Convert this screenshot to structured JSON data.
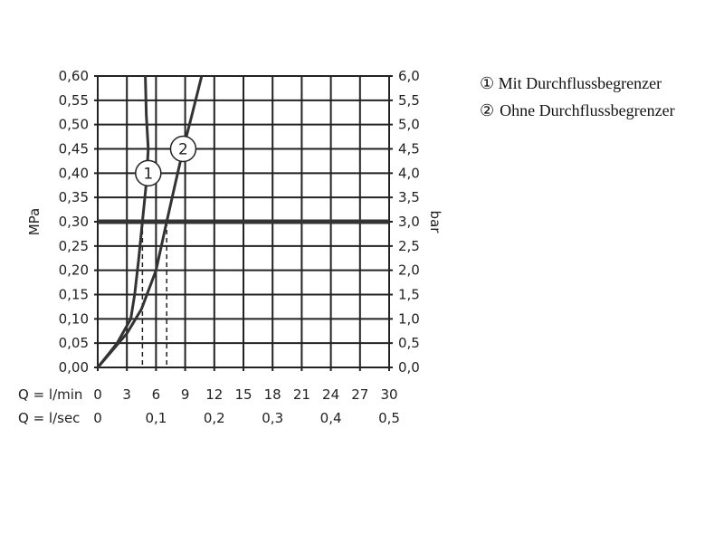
{
  "chart_data": {
    "type": "line",
    "xlabel": "Q = l/min",
    "xlabel2": "Q = l/sec",
    "ylabel": "MPa",
    "ylabel_right": "bar",
    "xlim": [
      0,
      30
    ],
    "ylim": [
      0,
      0.6
    ],
    "grid": true,
    "x_ticks": [
      "0",
      "3",
      "6",
      "9",
      "12",
      "15",
      "18",
      "21",
      "24",
      "27",
      "30"
    ],
    "x2_ticks": [
      {
        "at": 0,
        "label": "0"
      },
      {
        "at": 6,
        "label": "0,1"
      },
      {
        "at": 12,
        "label": "0,2"
      },
      {
        "at": 18,
        "label": "0,3"
      },
      {
        "at": 24,
        "label": "0,4"
      },
      {
        "at": 30,
        "label": "0,5"
      }
    ],
    "y_ticks": [
      "0,00",
      "0,05",
      "0,10",
      "0,15",
      "0,20",
      "0,25",
      "0,30",
      "0,35",
      "0,40",
      "0,45",
      "0,50",
      "0,55",
      "0,60"
    ],
    "y_ticks_right": [
      "0,0",
      "0,5",
      "1,0",
      "1,5",
      "2,0",
      "2,5",
      "3,0",
      "3,5",
      "4,0",
      "4,5",
      "5,0",
      "5,5",
      "6,0"
    ],
    "reference_line": {
      "y": 0.3,
      "color": "#333333"
    },
    "series": [
      {
        "marker": "1",
        "color": "#333333",
        "x": [
          0,
          2,
          3.4,
          3.8,
          4.2,
          4.6,
          5.0,
          5.2,
          5.0,
          4.9
        ],
        "y": [
          0,
          0.05,
          0.1,
          0.15,
          0.22,
          0.3,
          0.38,
          0.45,
          0.52,
          0.6
        ],
        "label_at": [
          5.2,
          0.4
        ],
        "flow_at_ref": 4.6
      },
      {
        "marker": "2",
        "color": "#333333",
        "x": [
          0,
          3,
          4.5,
          6.0,
          7.1,
          8.0,
          8.8,
          9.7,
          10.7
        ],
        "y": [
          0,
          0.07,
          0.12,
          0.2,
          0.3,
          0.38,
          0.45,
          0.52,
          0.6
        ],
        "label_at": [
          8.8,
          0.45
        ],
        "flow_at_ref": 7.1
      }
    ]
  },
  "legend": [
    {
      "marker": "①",
      "text": "Mit Durchflussbegrenzer"
    },
    {
      "marker": "②",
      "text": "Ohne Durchflussbegrenzer"
    }
  ]
}
